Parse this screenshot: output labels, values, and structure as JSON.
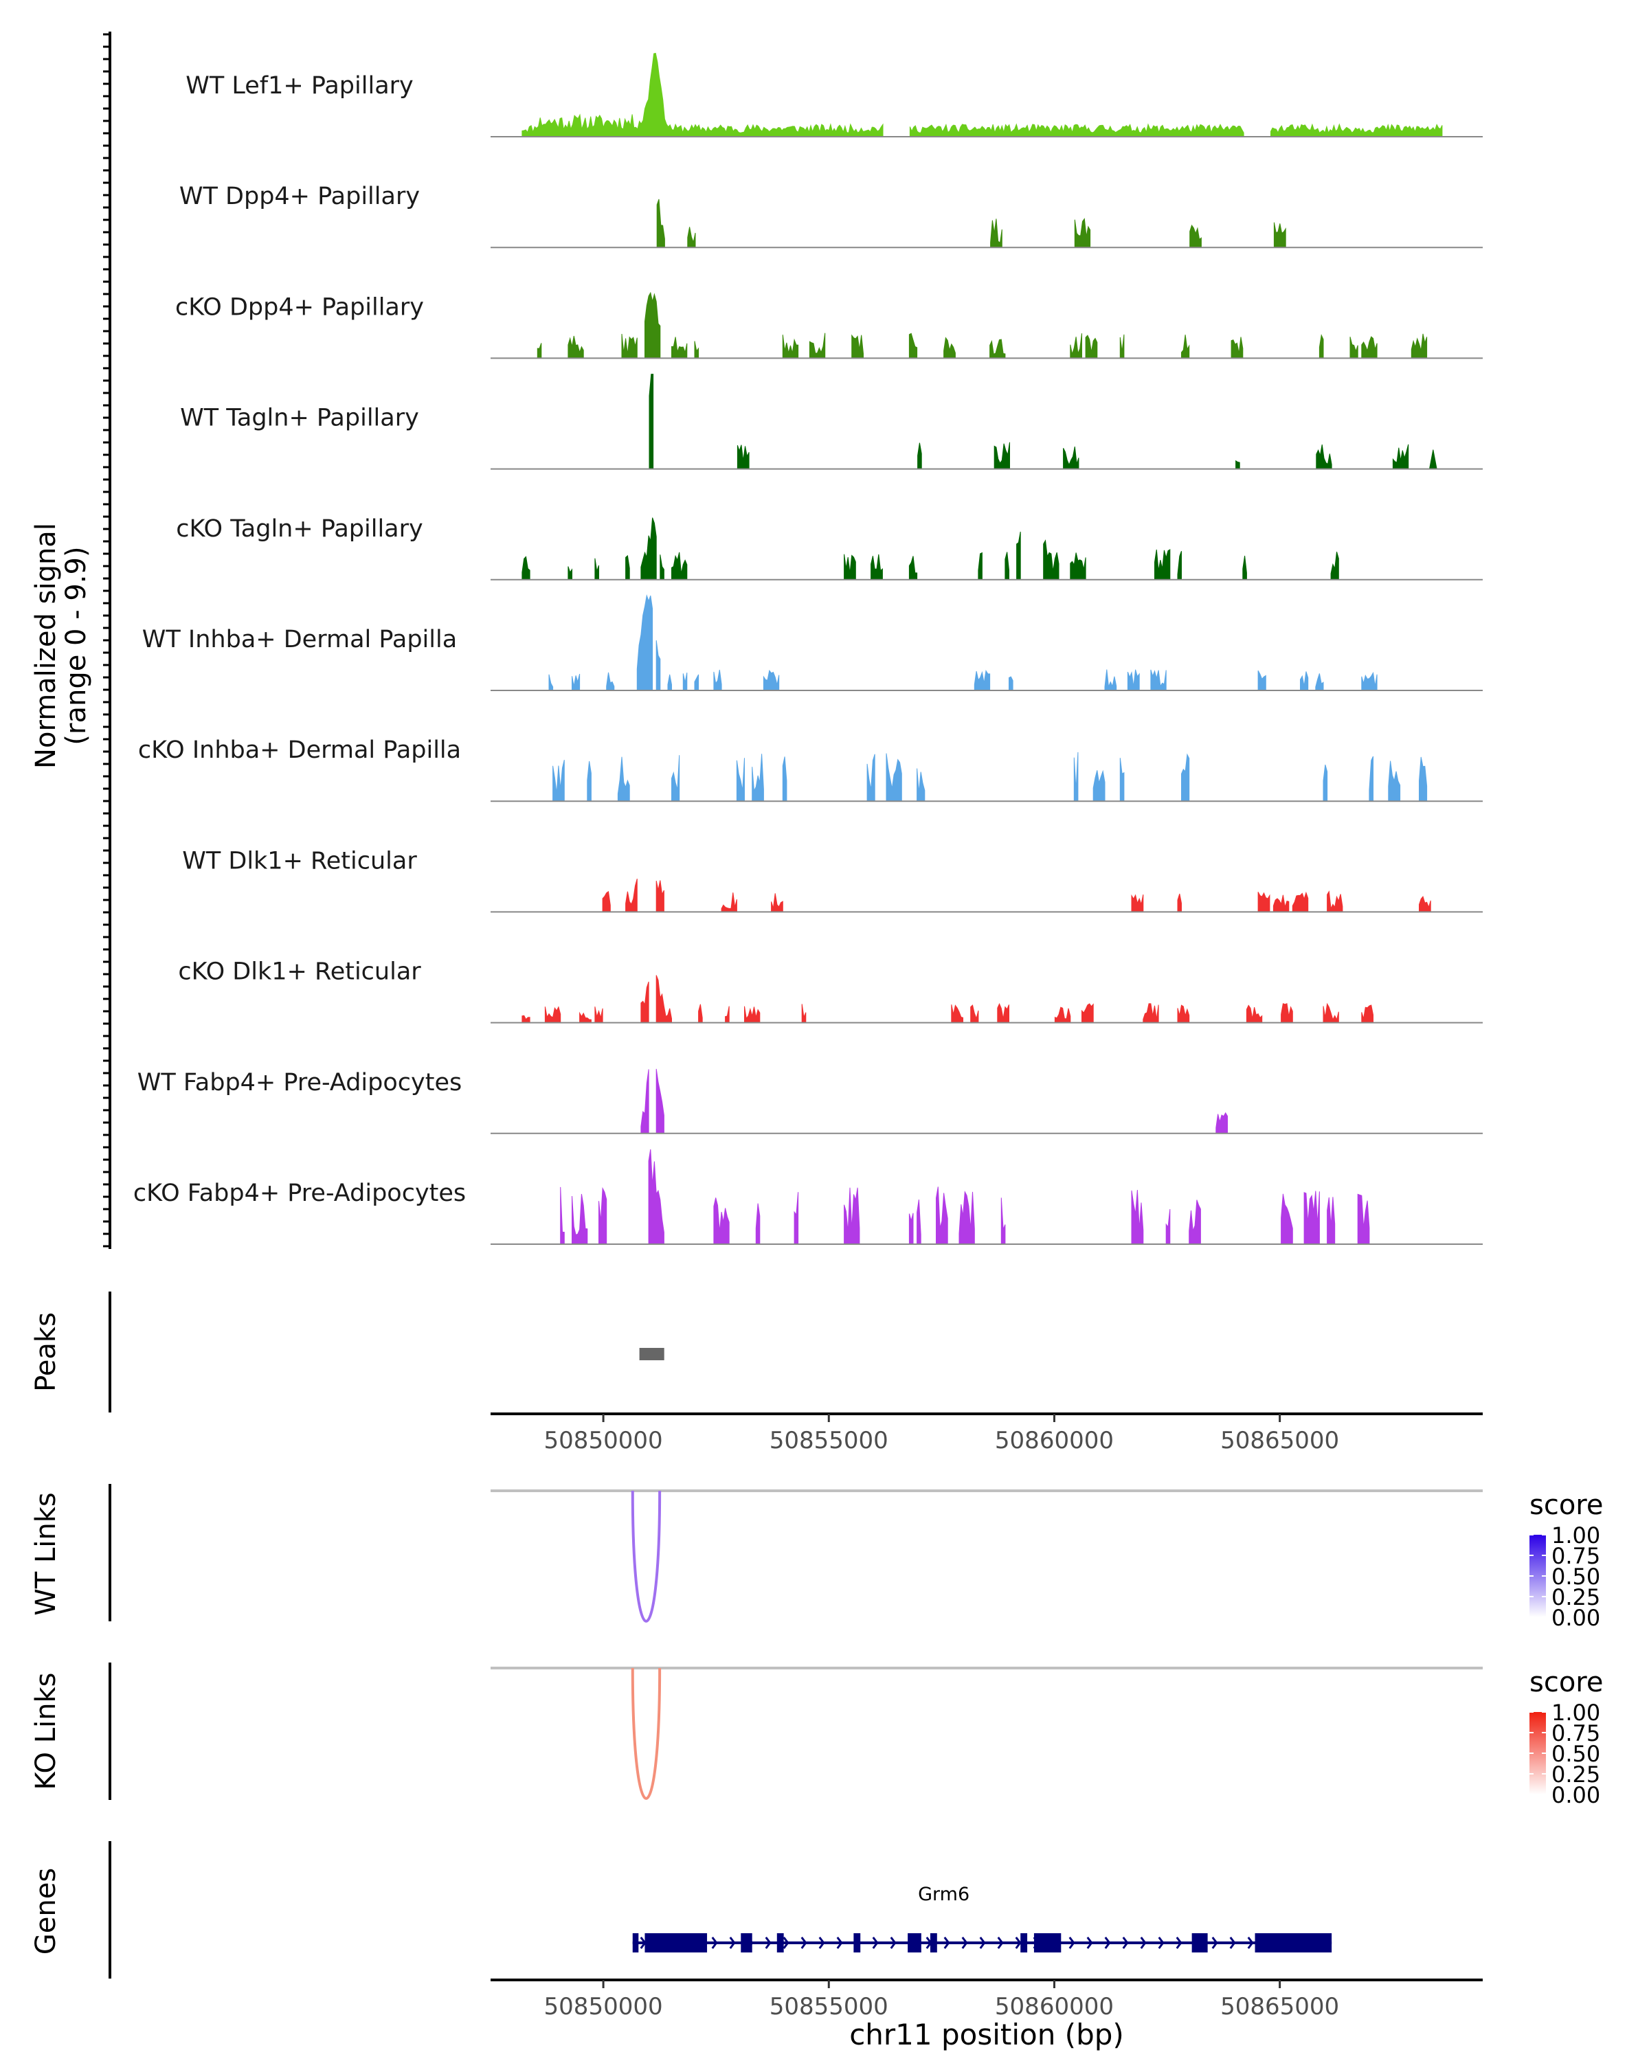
{
  "chart_data": {
    "type": "coverage-track",
    "region": {
      "chrom": "chr11",
      "start": 50847500,
      "end": 50869500
    },
    "signal_axis": {
      "label_line1": "Normalized signal",
      "label_line2": "(range 0 - 9.9)",
      "range": [
        0,
        9.9
      ]
    },
    "tracks": [
      {
        "name": "WT Lef1+ Papillary",
        "color": "#6ACD1A",
        "mode": "smooth",
        "seed": 11,
        "spans": [
          [
            50848200,
            50856200
          ],
          [
            50856800,
            50864200
          ],
          [
            50864800,
            50868600
          ]
        ],
        "peaks": [
          [
            50851150,
            8.0,
            160
          ]
        ],
        "base": 1.0
      },
      {
        "name": "WT Dpp4+ Papillary",
        "color": "#3D8B0D",
        "mode": "segments",
        "seed": 23,
        "density": 0.28,
        "bw": 85,
        "max": 3.0,
        "range": [
          50850000,
          50868600
        ],
        "peaks": [
          [
            50851100,
            5.0,
            150
          ]
        ]
      },
      {
        "name": "cKO Dpp4+ Papillary",
        "color": "#3D8B0D",
        "mode": "segments",
        "seed": 37,
        "density": 0.55,
        "bw": 85,
        "max": 2.6,
        "range": [
          50848200,
          50868600
        ],
        "peaks": [
          [
            50851050,
            5.5,
            190
          ],
          [
            50855100,
            3.5,
            120
          ]
        ]
      },
      {
        "name": "WT Tagln+ Papillary",
        "color": "#006400",
        "mode": "segments",
        "seed": 41,
        "density": 0.16,
        "bw": 85,
        "max": 2.8,
        "range": [
          50850000,
          50868600
        ],
        "peaks": [
          [
            50851100,
            9.9,
            120
          ]
        ]
      },
      {
        "name": "cKO Tagln+ Papillary",
        "color": "#006400",
        "mode": "segments",
        "seed": 53,
        "density": 0.42,
        "bw": 85,
        "max": 3.2,
        "range": [
          50848200,
          50867000
        ],
        "peaks": [
          [
            50851100,
            4.0,
            150
          ],
          [
            50859500,
            4.0,
            300
          ]
        ]
      },
      {
        "name": "WT Inhba+ Dermal Papilla",
        "color": "#5AA6E6",
        "mode": "segments",
        "seed": 67,
        "density": 0.32,
        "bw": 85,
        "max": 2.2,
        "range": [
          50848200,
          50867000
        ],
        "peaks": [
          [
            50851000,
            9.0,
            200
          ]
        ]
      },
      {
        "name": "cKO Inhba+ Dermal Papilla",
        "color": "#5AA6E6",
        "mode": "segments",
        "seed": 79,
        "density": 0.3,
        "bw": 85,
        "max": 5.0,
        "range": [
          50848200,
          50868600
        ],
        "peaks": [
          [
            50860600,
            8.0,
            70
          ]
        ]
      },
      {
        "name": "WT Dlk1+ Reticular",
        "color": "#F03030",
        "mode": "segments",
        "seed": 83,
        "density": 0.5,
        "bw": 85,
        "max": 2.2,
        "range": [
          50848200,
          50868600
        ],
        "peaks": [
          [
            50851000,
            3.5,
            260
          ]
        ]
      },
      {
        "name": "cKO Dlk1+ Reticular",
        "color": "#F03030",
        "mode": "segments",
        "seed": 97,
        "density": 0.55,
        "bw": 85,
        "max": 2.0,
        "range": [
          50848200,
          50868300
        ],
        "peaks": [
          [
            50851100,
            4.5,
            170
          ]
        ]
      },
      {
        "name": "WT Fabp4+ Pre-Adipocytes",
        "color": "#B23BE6",
        "mode": "segments",
        "seed": 101,
        "density": 0.07,
        "bw": 85,
        "max": 2.8,
        "range": [
          50848200,
          50868600
        ],
        "peaks": [
          [
            50851100,
            8.5,
            130
          ]
        ]
      },
      {
        "name": "cKO Fabp4+ Pre-Adipocytes",
        "color": "#B23BE6",
        "mode": "segments",
        "seed": 113,
        "density": 0.5,
        "bw": 85,
        "max": 6.0,
        "range": [
          50848200,
          50867600
        ],
        "peaks": [
          [
            50862700,
            9.9,
            110
          ],
          [
            50851000,
            7.5,
            130
          ]
        ]
      }
    ],
    "peaks_track": {
      "label": "Peaks",
      "peaks": [
        [
          50850800,
          50851350
        ]
      ],
      "color": "#666666"
    },
    "x_axis": {
      "ticks": [
        50850000,
        50855000,
        50860000,
        50865000
      ],
      "tick_labels": [
        "50850000",
        "50855000",
        "50860000",
        "50865000"
      ],
      "xlabel": "chr11 position (bp)"
    },
    "links": [
      {
        "label": "WT Links",
        "from": 50850650,
        "to": 50851250,
        "score": 0.55,
        "color": "#A070F0",
        "legend": {
          "title": "score",
          "ticks": [
            "1.00",
            "0.75",
            "0.50",
            "0.25",
            "0.00"
          ],
          "low": "#FFFFFF",
          "high": "#2B00E6"
        }
      },
      {
        "label": "KO Links",
        "from": 50850650,
        "to": 50851250,
        "score": 0.55,
        "color": "#F4907A",
        "legend": {
          "title": "score",
          "ticks": [
            "1.00",
            "0.75",
            "0.50",
            "0.25",
            "0.00"
          ],
          "low": "#FFFFFF",
          "high": "#F02010"
        }
      }
    ],
    "genes": {
      "label": "Genes",
      "gene_name": "Grm6",
      "color": "#00007A",
      "strand": "+",
      "span": [
        50850650,
        50866150
      ],
      "exons": [
        [
          50850650,
          50850780
        ],
        [
          50850920,
          50852300
        ],
        [
          50853050,
          50853300
        ],
        [
          50853850,
          50854000
        ],
        [
          50855550,
          50855700
        ],
        [
          50856750,
          50857050
        ],
        [
          50857250,
          50857400
        ],
        [
          50859250,
          50859400
        ],
        [
          50859550,
          50860150
        ],
        [
          50863050,
          50863400
        ],
        [
          50864450,
          50866150
        ]
      ]
    }
  }
}
